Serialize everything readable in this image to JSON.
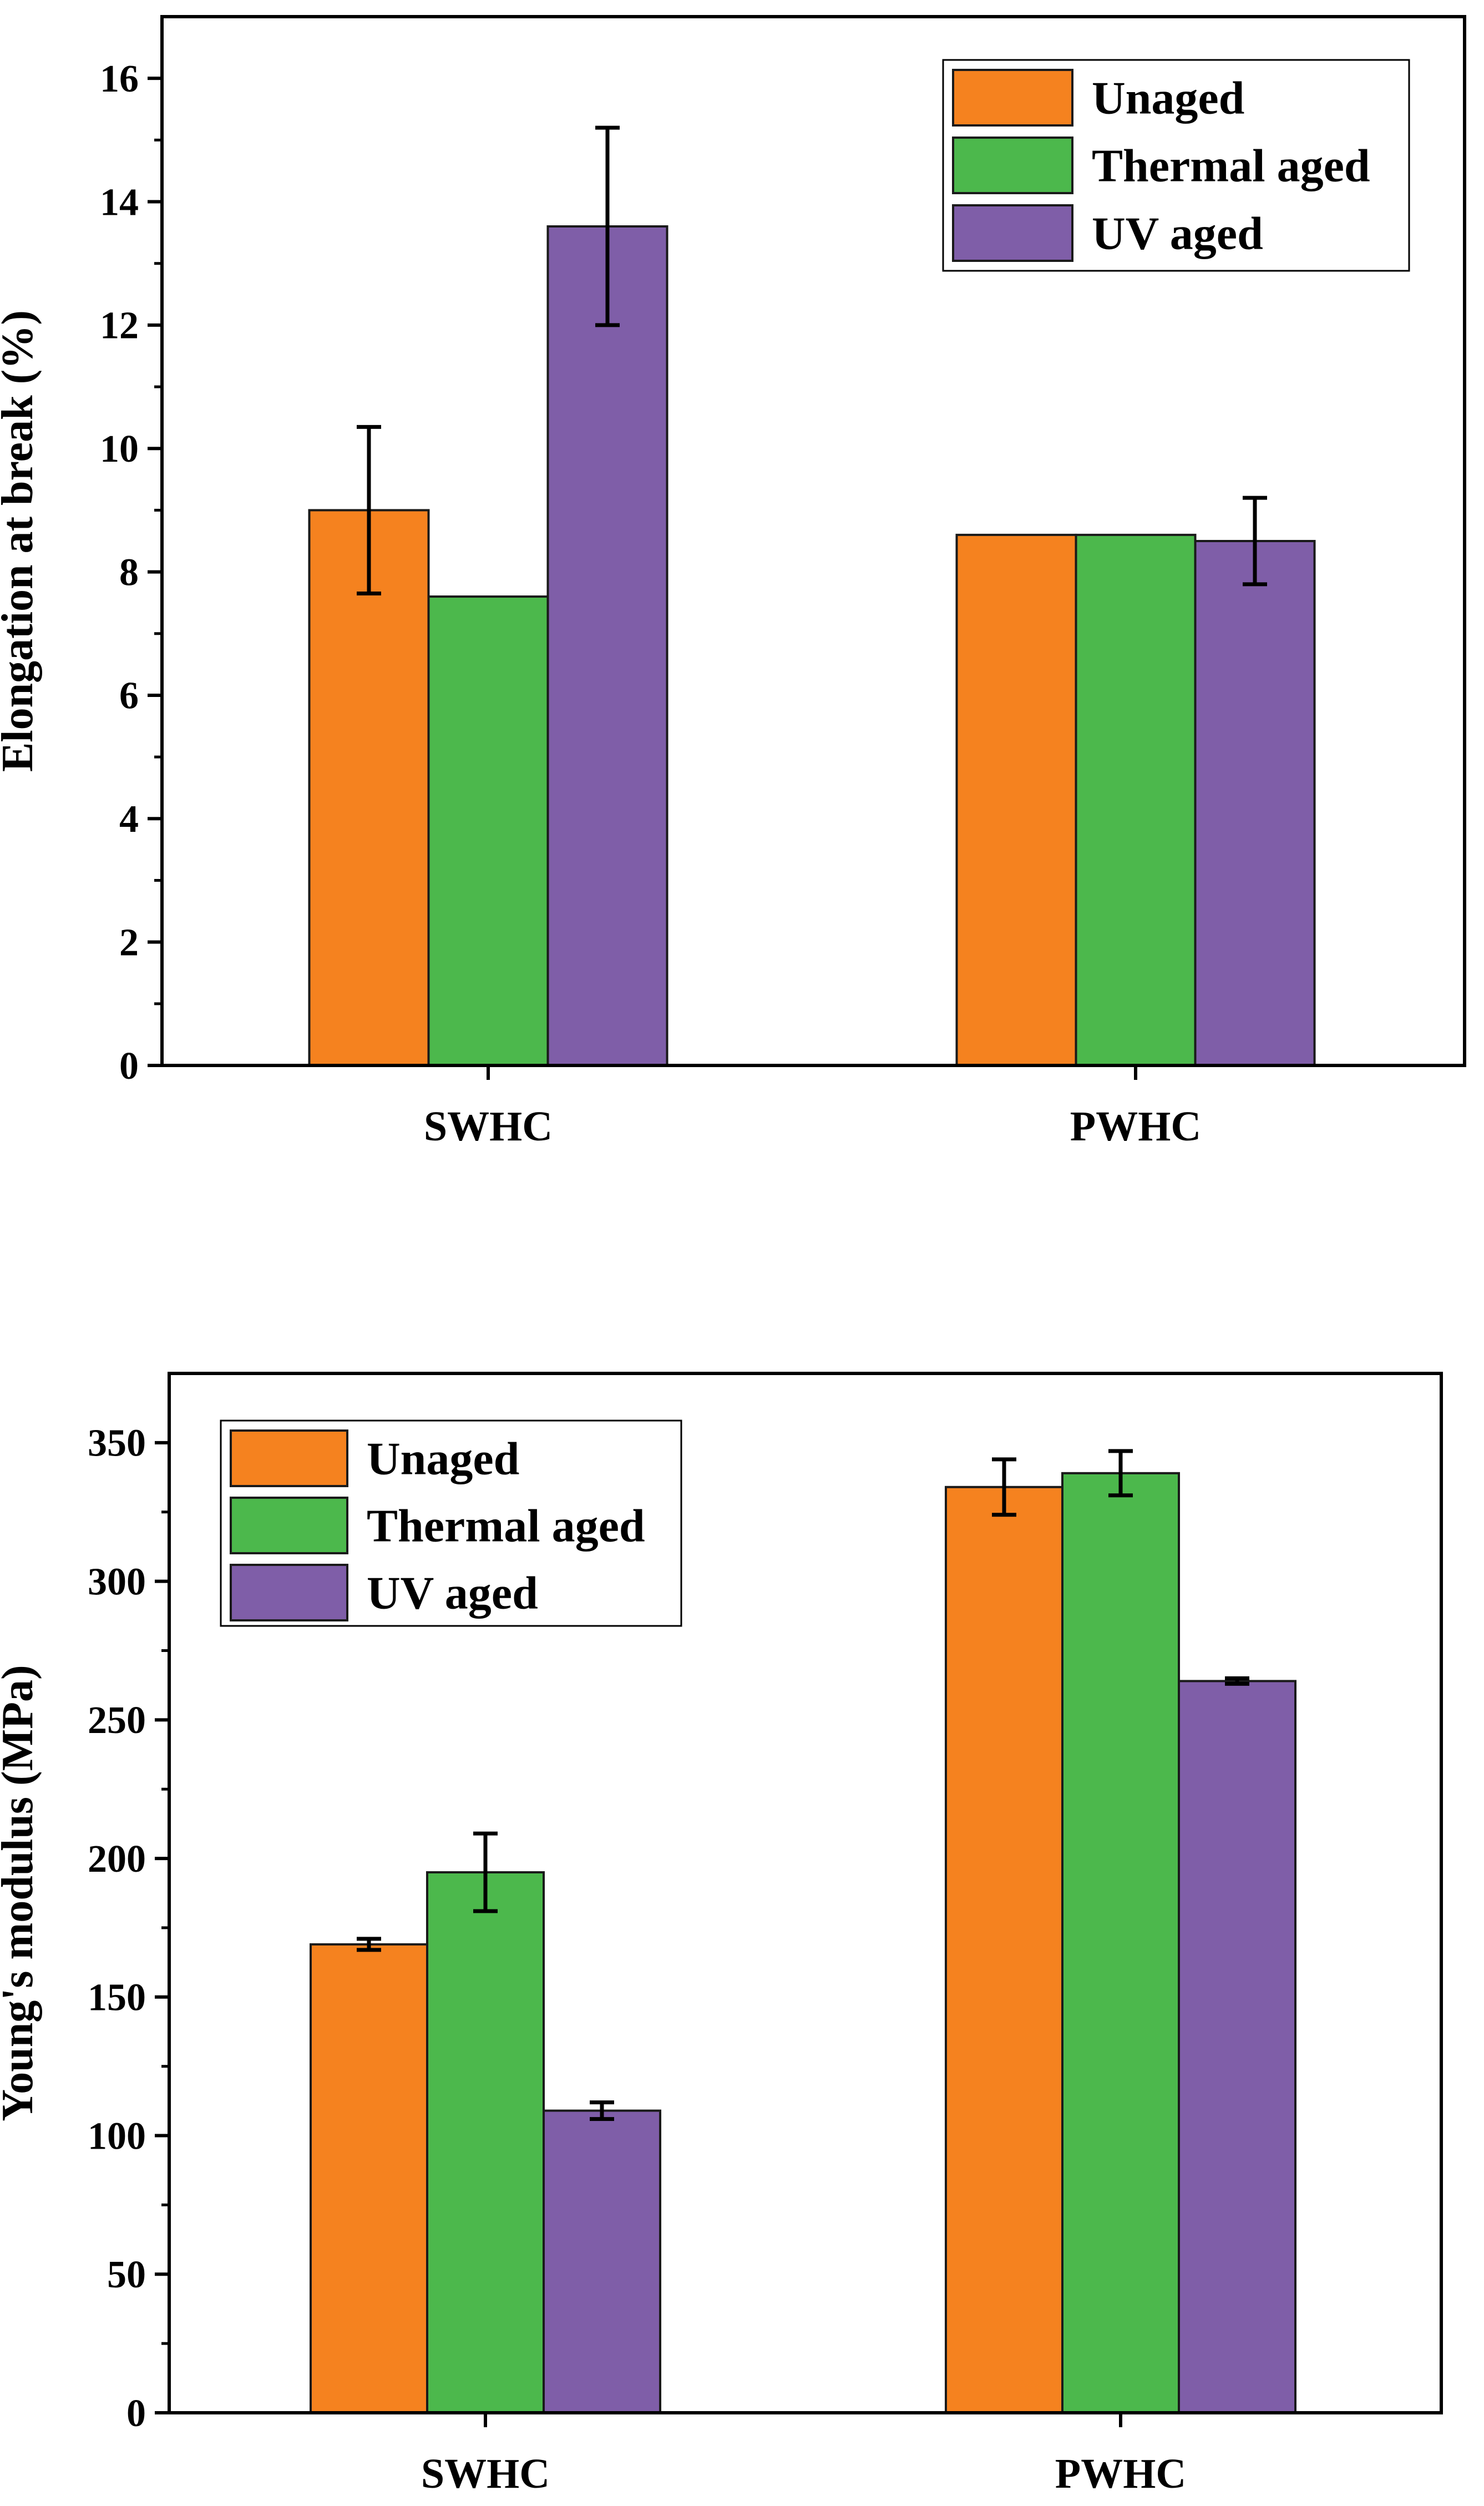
{
  "chart_data": [
    {
      "type": "bar",
      "title": "",
      "xlabel": "",
      "ylabel": "Elongation at break (%)",
      "ylim": [
        0,
        17
      ],
      "yticks": [
        0,
        2,
        4,
        6,
        8,
        10,
        12,
        14,
        16
      ],
      "grid": false,
      "legend_position": "top-right",
      "categories": [
        "SWHC",
        "PWHC"
      ],
      "series": [
        {
          "name": "Unaged",
          "color": "#F5821F",
          "values": [
            9.0,
            8.6
          ],
          "errors": [
            1.35,
            0
          ]
        },
        {
          "name": "Thermal aged",
          "color": "#4CB84C",
          "values": [
            7.6,
            8.6
          ],
          "errors": [
            0,
            0
          ]
        },
        {
          "name": "UV aged",
          "color": "#7F5EA8",
          "values": [
            13.6,
            8.5
          ],
          "errors": [
            1.6,
            0.7
          ]
        }
      ]
    },
    {
      "type": "bar",
      "title": "",
      "xlabel": "",
      "ylabel": "Young's modulus (MPa)",
      "ylim": [
        0,
        375
      ],
      "yticks": [
        0,
        50,
        100,
        150,
        200,
        250,
        300,
        350
      ],
      "grid": false,
      "legend_position": "top-left",
      "categories": [
        "SWHC",
        "PWHC"
      ],
      "series": [
        {
          "name": "Unaged",
          "color": "#F5821F",
          "values": [
            169,
            334
          ],
          "errors": [
            2,
            10
          ]
        },
        {
          "name": "Thermal aged",
          "color": "#4CB84C",
          "values": [
            195,
            339
          ],
          "errors": [
            14,
            8
          ]
        },
        {
          "name": "UV aged",
          "color": "#7F5EA8",
          "values": [
            109,
            264
          ],
          "errors": [
            3,
            1
          ]
        }
      ]
    }
  ]
}
